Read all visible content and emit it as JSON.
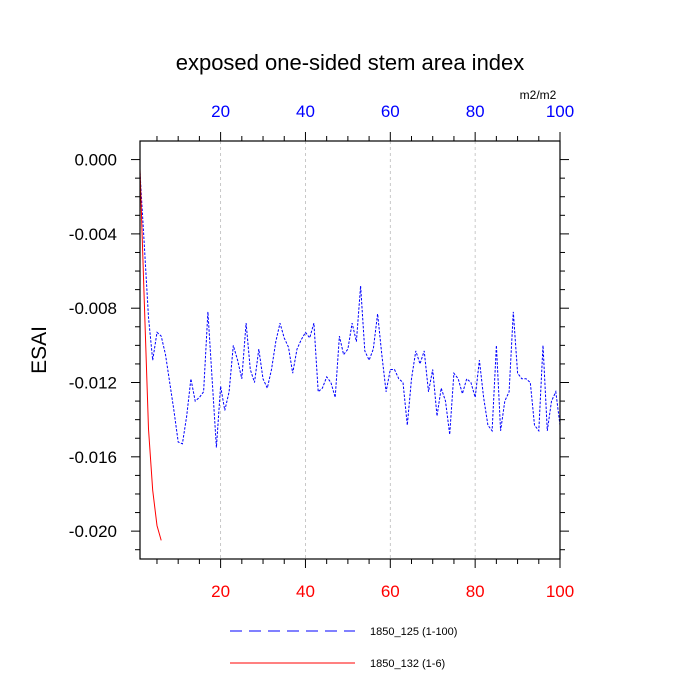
{
  "chart_data": {
    "type": "line",
    "title": "exposed one-sided stem area index",
    "units": "m2/m2",
    "ylabel": "ESAI",
    "xlim": [
      1,
      100
    ],
    "ylim": [
      -0.0215,
      0.001
    ],
    "x_ticks": [
      20,
      40,
      60,
      80,
      100
    ],
    "y_ticks": [
      0.0,
      -0.004,
      -0.008,
      -0.012,
      -0.016,
      -0.02
    ],
    "y_tick_labels": [
      "0.000",
      "-0.004",
      "-0.008",
      "-0.012",
      "-0.016",
      "-0.020"
    ],
    "grid": "vertical dashed at x ticks",
    "colors": {
      "top_axis": "#0000ff",
      "bottom_axis": "#ff0000",
      "series_1": "#0000ff",
      "series_2": "#ff0000",
      "grid": "#bbbbbb"
    },
    "series": [
      {
        "name": "1850_125 (1-100)",
        "style": "dashed",
        "color": "#0000ff",
        "x": [
          1,
          2,
          3,
          4,
          5,
          6,
          7,
          8,
          9,
          10,
          11,
          12,
          13,
          14,
          15,
          16,
          17,
          18,
          19,
          20,
          21,
          22,
          23,
          24,
          25,
          26,
          27,
          28,
          29,
          30,
          31,
          32,
          33,
          34,
          35,
          36,
          37,
          38,
          39,
          40,
          41,
          42,
          43,
          44,
          45,
          46,
          47,
          48,
          49,
          50,
          51,
          52,
          53,
          54,
          55,
          56,
          57,
          58,
          59,
          60,
          61,
          62,
          63,
          64,
          65,
          66,
          67,
          68,
          69,
          70,
          71,
          72,
          73,
          74,
          75,
          76,
          77,
          78,
          79,
          80,
          81,
          82,
          83,
          84,
          85,
          86,
          87,
          88,
          89,
          90,
          91,
          92,
          93,
          94,
          95,
          96,
          97,
          98,
          99,
          100
        ],
        "y": [
          -0.0007,
          -0.0045,
          -0.0085,
          -0.0108,
          -0.0093,
          -0.0095,
          -0.0105,
          -0.012,
          -0.0135,
          -0.0152,
          -0.0153,
          -0.0138,
          -0.0118,
          -0.013,
          -0.0128,
          -0.0125,
          -0.0082,
          -0.0118,
          -0.0155,
          -0.0122,
          -0.0135,
          -0.0125,
          -0.01,
          -0.0108,
          -0.0118,
          -0.0088,
          -0.0113,
          -0.012,
          -0.0102,
          -0.0118,
          -0.0123,
          -0.0113,
          -0.0098,
          -0.0088,
          -0.0096,
          -0.0101,
          -0.0115,
          -0.0102,
          -0.0097,
          -0.0093,
          -0.0096,
          -0.0088,
          -0.0125,
          -0.0123,
          -0.0117,
          -0.012,
          -0.0128,
          -0.0095,
          -0.0105,
          -0.0102,
          -0.0088,
          -0.0098,
          -0.0068,
          -0.0103,
          -0.0108,
          -0.0102,
          -0.0083,
          -0.0105,
          -0.0125,
          -0.0113,
          -0.0113,
          -0.0118,
          -0.012,
          -0.0143,
          -0.0118,
          -0.0103,
          -0.011,
          -0.0103,
          -0.0125,
          -0.0113,
          -0.0138,
          -0.0123,
          -0.013,
          -0.0148,
          -0.0115,
          -0.0118,
          -0.0126,
          -0.0118,
          -0.012,
          -0.0128,
          -0.0108,
          -0.0128,
          -0.0143,
          -0.0146,
          -0.01,
          -0.0146,
          -0.013,
          -0.0125,
          -0.0082,
          -0.0115,
          -0.0118,
          -0.0118,
          -0.012,
          -0.0143,
          -0.0146,
          -0.01,
          -0.0146,
          -0.013,
          -0.0125,
          -0.0143
        ]
      },
      {
        "name": "1850_132 (1-6)",
        "style": "solid",
        "color": "#ff0000",
        "x": [
          1,
          2,
          3,
          4,
          5,
          6
        ],
        "y": [
          -0.0005,
          -0.0075,
          -0.0145,
          -0.0178,
          -0.0197,
          -0.0205
        ]
      }
    ]
  }
}
